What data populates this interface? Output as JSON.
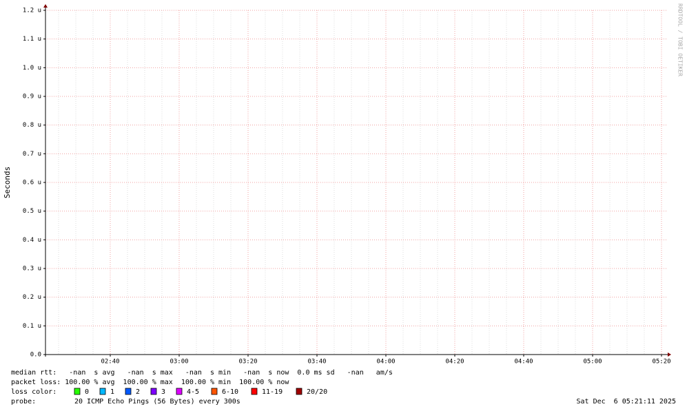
{
  "chart_data": {
    "type": "line",
    "y_axis_label": "Seconds",
    "ylim": [
      0,
      1.2e-06
    ],
    "yticks": [
      {
        "value": 0,
        "label": "0.0"
      },
      {
        "value": 1e-07,
        "label": "0.1 u"
      },
      {
        "value": 2e-07,
        "label": "0.2 u"
      },
      {
        "value": 3e-07,
        "label": "0.3 u"
      },
      {
        "value": 4e-07,
        "label": "0.4 u"
      },
      {
        "value": 5e-07,
        "label": "0.5 u"
      },
      {
        "value": 6e-07,
        "label": "0.6 u"
      },
      {
        "value": 7e-07,
        "label": "0.7 u"
      },
      {
        "value": 8e-07,
        "label": "0.8 u"
      },
      {
        "value": 9e-07,
        "label": "0.9 u"
      },
      {
        "value": 1e-06,
        "label": "1.0 u"
      },
      {
        "value": 1.1e-06,
        "label": "1.1 u"
      },
      {
        "value": 1.2e-06,
        "label": "1.2 u"
      }
    ],
    "xlim": [
      141.2,
      321.6
    ],
    "xticks": [
      {
        "value": 160,
        "label": "02:40"
      },
      {
        "value": 180,
        "label": "03:00"
      },
      {
        "value": 200,
        "label": "03:20"
      },
      {
        "value": 220,
        "label": "03:40"
      },
      {
        "value": 240,
        "label": "04:00"
      },
      {
        "value": 260,
        "label": "04:20"
      },
      {
        "value": 280,
        "label": "04:40"
      },
      {
        "value": 300,
        "label": "05:00"
      },
      {
        "value": 320,
        "label": "05:20"
      }
    ],
    "grid": true,
    "watermark": "RRDTOOL / TOBI OETIKER",
    "stats": [
      "median rtt:   -nan  s avg   -nan  s max   -nan  s min   -nan  s now  0.0 ms sd   -nan   am/s",
      "packet loss: 100.00 % avg  100.00 % max  100.00 % min  100.00 % now"
    ],
    "loss_color_label": "loss color:",
    "loss_colors": [
      {
        "label": "0",
        "color": "#26ff00"
      },
      {
        "label": "1",
        "color": "#00b8ff"
      },
      {
        "label": "2",
        "color": "#0059ff"
      },
      {
        "label": "3",
        "color": "#7e00ff"
      },
      {
        "label": "4-5",
        "color": "#dd00ff"
      },
      {
        "label": "6-10",
        "color": "#ff5500"
      },
      {
        "label": "11-19",
        "color": "#ff0000"
      },
      {
        "label": "20/20",
        "color": "#a10000"
      }
    ],
    "probe_label": "probe:",
    "probe": "20 ICMP Echo Pings (56 Bytes) every 300s",
    "timestamp": "Sat Dec  6 05:21:11 2025"
  }
}
